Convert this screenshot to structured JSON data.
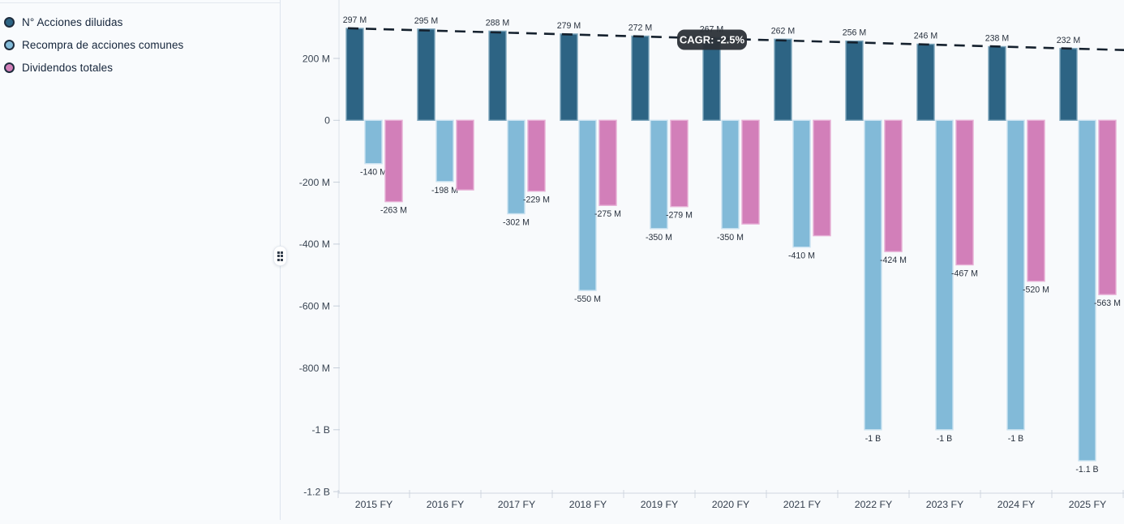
{
  "page": {
    "background": "#f8fafc"
  },
  "legend": {
    "items": [
      {
        "label": "N° Acciones diluidas",
        "color": "#2d6484"
      },
      {
        "label": "Recompra de acciones comunes",
        "color": "#82bad8"
      },
      {
        "label": "Dividendos totales",
        "color": "#d27fb9"
      }
    ]
  },
  "chart_data": {
    "type": "bar",
    "title": "",
    "categories": [
      "2015 FY",
      "2016 FY",
      "2017 FY",
      "2018 FY",
      "2019 FY",
      "2020 FY",
      "2021 FY",
      "2022 FY",
      "2023 FY",
      "2024 FY",
      "2025 FY"
    ],
    "units": "millions",
    "series": [
      {
        "name": "N° Acciones diluidas",
        "color": "#2d6484",
        "stroke": "#7ea6bc",
        "values": [
          297,
          295,
          288,
          279,
          272,
          267,
          262,
          256,
          246,
          238,
          232
        ],
        "labels": [
          "297 M",
          "295 M",
          "288 M",
          "279 M",
          "272 M",
          "267 M",
          "262 M",
          "256 M",
          "246 M",
          "238 M",
          "232 M"
        ]
      },
      {
        "name": "Recompra de acciones comunes",
        "color": "#82bad8",
        "stroke": "#c9e2f1",
        "values": [
          -140,
          -198,
          -302,
          -550,
          -350,
          -350,
          -410,
          -1000,
          -1000,
          -1000,
          -1100
        ],
        "labels": [
          "-140 M",
          "-198 M",
          "-302 M",
          "-550 M",
          "-350 M",
          "-350 M",
          "-410 M",
          "-1 B",
          "-1 B",
          "-1 B",
          "-1.1 B"
        ]
      },
      {
        "name": "Dividendos totales",
        "color": "#d27fb9",
        "stroke": "#e6aed5",
        "values": [
          -263,
          -225,
          -229,
          -275,
          -279,
          -335,
          -373,
          -424,
          -467,
          -520,
          -563
        ],
        "labels": [
          "-263 M",
          null,
          "-229 M",
          "-275 M",
          "-279 M",
          null,
          null,
          "-424 M",
          "-467 M",
          "-520 M",
          "-563 M"
        ]
      }
    ],
    "y_ticks": [
      {
        "value": 200,
        "label": "200 M"
      },
      {
        "value": 0,
        "label": "0"
      },
      {
        "value": -200,
        "label": "-200 M"
      },
      {
        "value": -400,
        "label": "-400 M"
      },
      {
        "value": -600,
        "label": "-600 M"
      },
      {
        "value": -800,
        "label": "-800 M"
      },
      {
        "value": -1000,
        "label": "-1 B"
      },
      {
        "value": -1200,
        "label": "-1.2 B"
      }
    ],
    "ylim": [
      -1210,
      390
    ],
    "grid": false,
    "legend_position": "left",
    "trendline": {
      "label": "CAGR: -2.5%",
      "color": "#15212e",
      "badge_bg": "#2c3138",
      "badge_text_color": "#ffffff",
      "start_value": 297,
      "end_value": 232
    }
  }
}
